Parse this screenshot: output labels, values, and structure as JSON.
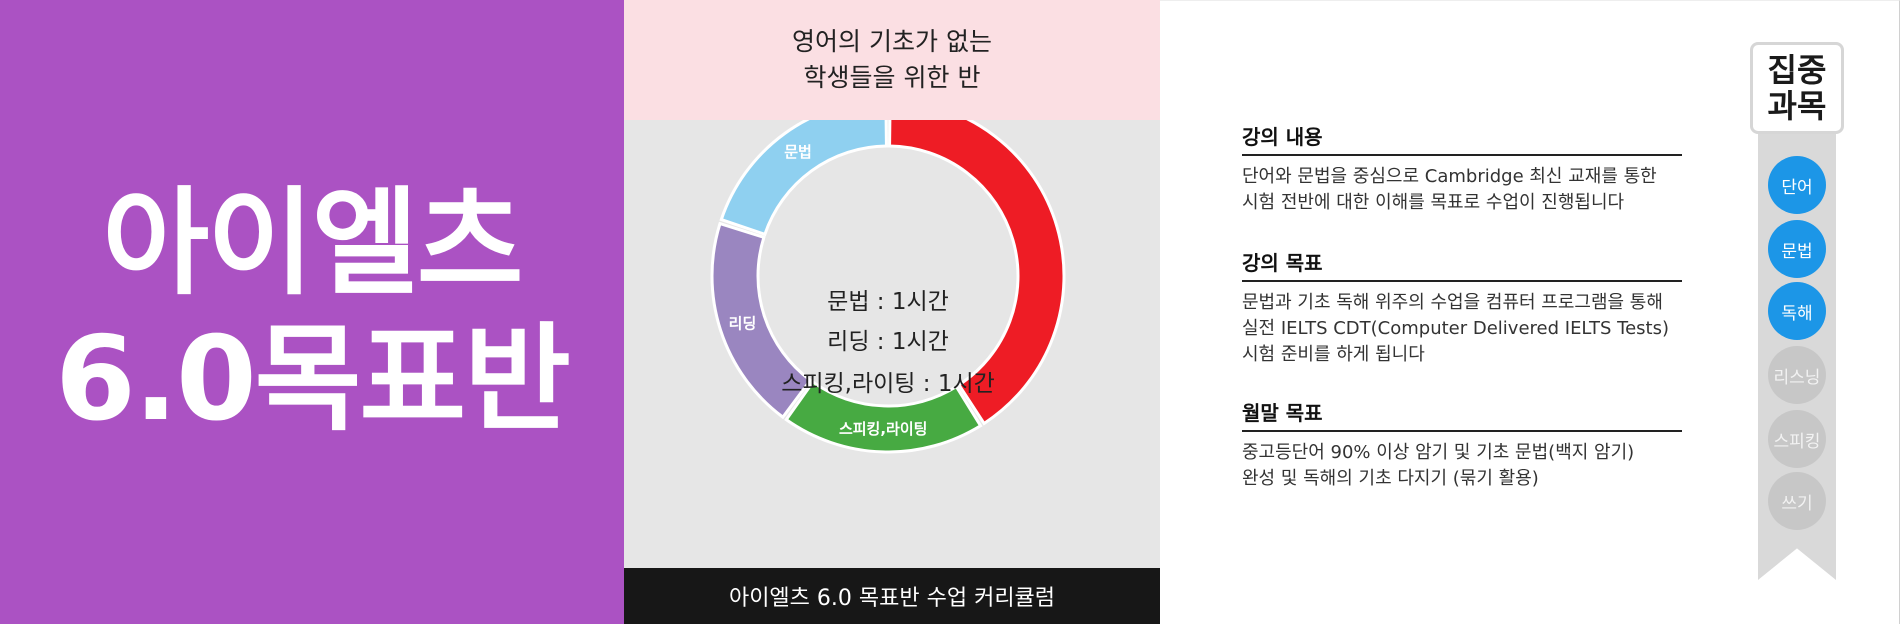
{
  "left": {
    "title_line1": "아이엘츠",
    "title_line2": "6.0목표반",
    "bg_color": "#ab52c3"
  },
  "middle": {
    "header_line1": "영어의 기초가 없는",
    "header_line2": "학생들을 위한 반",
    "footer": "아이엘츠 6.0 목표반 수업 커리큘럼",
    "center_lines": [
      "문법 : 1시간",
      "리딩 : 1시간",
      "스피킹,라이팅 : 1시간"
    ]
  },
  "chart_data": {
    "type": "pie",
    "title": "",
    "slices": [
      {
        "label": "",
        "value": 41,
        "color": "#ee1c25"
      },
      {
        "label": "스피킹,라이팅",
        "value": 19,
        "color": "#47aa42"
      },
      {
        "label": "리딩",
        "value": 20,
        "color": "#9a86c0"
      },
      {
        "label": "문법",
        "value": 20,
        "color": "#8fd0f0"
      }
    ]
  },
  "sections": [
    {
      "title": "강의 내용",
      "lines": [
        "단어와 문법을 중심으로 Cambridge 최신 교재를 통한",
        "시험 전반에 대한 이해를 목표로 수업이 진행됩니다"
      ]
    },
    {
      "title": "강의  목표",
      "lines": [
        "문법과 기초 독해 위주의 수업을 컴퓨터 프로그램을 통해",
        "실전 IELTS CDT(Computer Delivered IELTS Tests)",
        "시험 준비를 하게 됩니다"
      ]
    },
    {
      "title": "월말  목표",
      "lines": [
        "중고등단어 90% 이상 암기 및 기초 문법(백지 암기)",
        "완성 및 독해의 기초 다지기 (묶기 활용)"
      ]
    }
  ],
  "focus": {
    "header_line1": "집중",
    "header_line2": "과목",
    "subjects": [
      {
        "label": "단어",
        "active": true
      },
      {
        "label": "문법",
        "active": true
      },
      {
        "label": "독해",
        "active": true
      },
      {
        "label": "리스닝",
        "active": false
      },
      {
        "label": "스피킹",
        "active": false
      },
      {
        "label": "쓰기",
        "active": false
      }
    ]
  }
}
